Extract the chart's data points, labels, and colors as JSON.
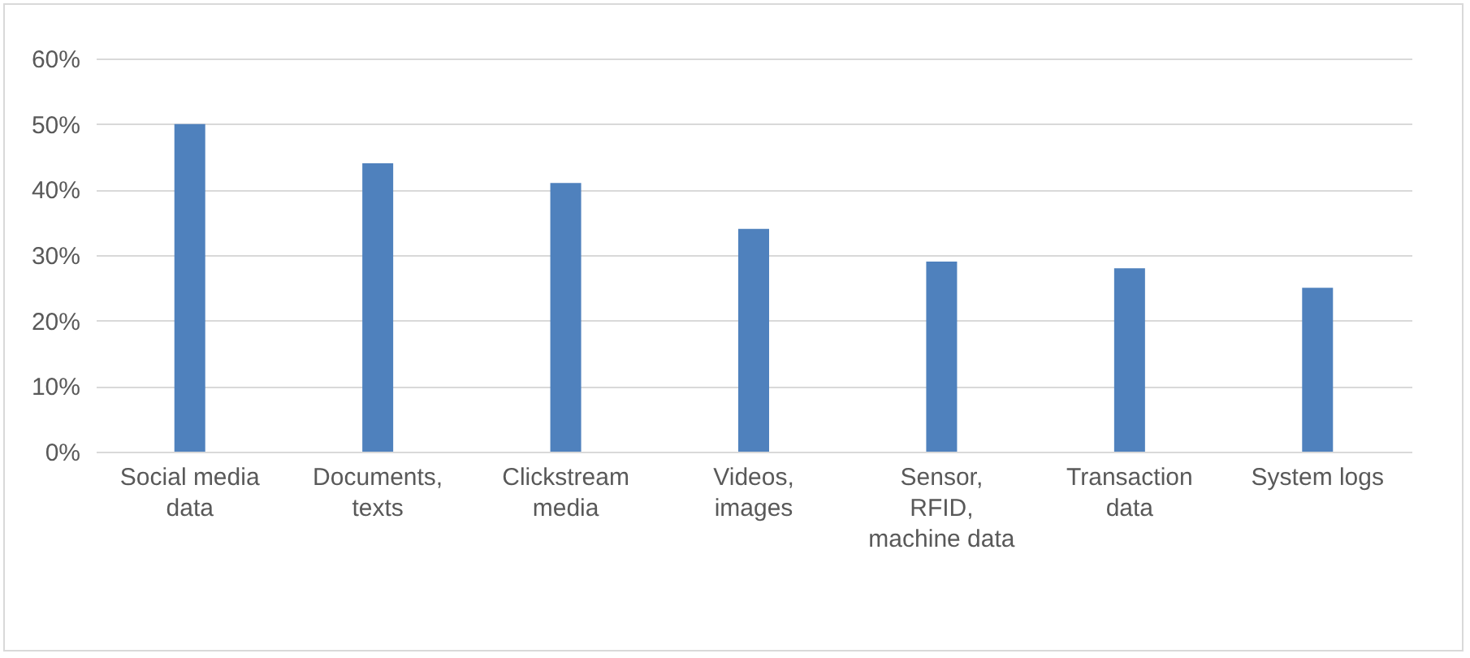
{
  "chart_data": {
    "type": "bar",
    "categories": [
      "Social media data",
      "Documents, texts",
      "Clickstream media",
      "Videos, images",
      "Sensor, RFID, machine data",
      "Transaction data",
      "System logs"
    ],
    "values": [
      50,
      44,
      41,
      34,
      29,
      28,
      25
    ],
    "color": "#4f81bd",
    "ylim": [
      0,
      60
    ],
    "yticks": [
      {
        "value": 0,
        "label": "0%"
      },
      {
        "value": 10,
        "label": "10%"
      },
      {
        "value": 20,
        "label": "20%"
      },
      {
        "value": 30,
        "label": "30%"
      },
      {
        "value": 40,
        "label": "40%"
      },
      {
        "value": 50,
        "label": "50%"
      },
      {
        "value": 60,
        "label": "60%"
      }
    ],
    "grid": "y"
  }
}
